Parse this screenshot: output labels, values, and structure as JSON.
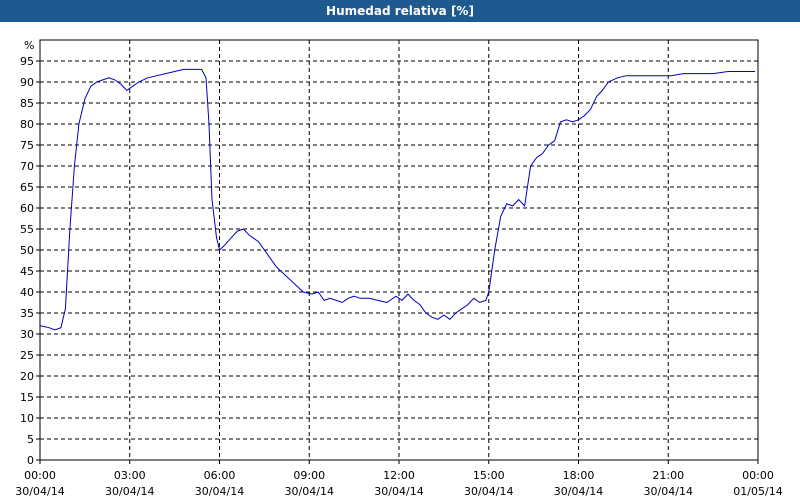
{
  "chart_data": {
    "type": "line",
    "title": "Humedad relativa [%]",
    "ylabel": "%",
    "ylim": [
      0,
      100
    ],
    "yticks": [
      0,
      5,
      10,
      15,
      20,
      25,
      30,
      35,
      40,
      45,
      50,
      55,
      60,
      65,
      70,
      75,
      80,
      85,
      90,
      95
    ],
    "xlim": [
      0,
      24
    ],
    "xticks": [
      {
        "hour": 0,
        "time": "00:00",
        "date": "30/04/14"
      },
      {
        "hour": 3,
        "time": "03:00",
        "date": "30/04/14"
      },
      {
        "hour": 6,
        "time": "06:00",
        "date": "30/04/14"
      },
      {
        "hour": 9,
        "time": "09:00",
        "date": "30/04/14"
      },
      {
        "hour": 12,
        "time": "12:00",
        "date": "30/04/14"
      },
      {
        "hour": 15,
        "time": "15:00",
        "date": "30/04/14"
      },
      {
        "hour": 18,
        "time": "18:00",
        "date": "30/04/14"
      },
      {
        "hour": 21,
        "time": "21:00",
        "date": "30/04/14"
      },
      {
        "hour": 24,
        "time": "00:00",
        "date": "01/05/14"
      }
    ],
    "grid": true,
    "line_color": "#0000c0",
    "series": [
      {
        "x": [
          0.0,
          0.3,
          0.5,
          0.7,
          0.85,
          1.0,
          1.15,
          1.3,
          1.5,
          1.7,
          1.9,
          2.1,
          2.3,
          2.5,
          2.7,
          2.9,
          3.0,
          3.3,
          3.6,
          3.9,
          4.2,
          4.5,
          4.8,
          5.1,
          5.4,
          5.55,
          5.65,
          5.75,
          5.9,
          6.0,
          6.15,
          6.4,
          6.6,
          6.8,
          7.0,
          7.3,
          7.6,
          7.9,
          8.2,
          8.5,
          8.8,
          9.1,
          9.3,
          9.5,
          9.7,
          9.9,
          10.1,
          10.3,
          10.5,
          10.7,
          11.0,
          11.3,
          11.6,
          11.9,
          12.1,
          12.3,
          12.5,
          12.7,
          12.9,
          13.1,
          13.3,
          13.5,
          13.7,
          13.9,
          14.1,
          14.3,
          14.5,
          14.7,
          14.9,
          15.0,
          15.2,
          15.4,
          15.6,
          15.8,
          16.0,
          16.2,
          16.4,
          16.6,
          16.8,
          17.0,
          17.2,
          17.4,
          17.6,
          17.8,
          18.0,
          18.2,
          18.4,
          18.6,
          18.8,
          19.0,
          19.3,
          19.6,
          19.9,
          20.2,
          20.5,
          20.8,
          21.1,
          21.5,
          22.0,
          22.5,
          23.0,
          23.5,
          23.9
        ],
        "y": [
          32,
          31.5,
          31,
          31.5,
          36,
          55,
          70,
          80,
          86,
          89,
          90,
          90.5,
          91,
          90.5,
          89.5,
          88,
          88.5,
          90,
          91,
          91.5,
          92,
          92.5,
          93,
          93,
          93,
          91,
          80,
          62,
          53,
          50,
          51,
          53,
          54.5,
          55,
          53.5,
          52,
          49,
          46,
          44,
          42,
          40,
          39.5,
          40,
          38,
          38.5,
          38,
          37.5,
          38.5,
          39,
          38.5,
          38.5,
          38,
          37.5,
          39,
          38,
          39.5,
          38,
          37,
          35,
          34,
          33.5,
          34.5,
          33.5,
          35,
          36,
          37,
          38.5,
          37.5,
          38,
          40,
          50,
          58,
          61,
          60.5,
          62,
          60.5,
          70,
          72,
          73,
          75,
          76,
          80.5,
          81,
          80.5,
          81,
          82,
          83.5,
          86.5,
          88,
          90,
          91,
          91.5,
          91.5,
          91.5,
          91.5,
          91.5,
          91.5,
          92,
          92,
          92,
          92.5,
          92.5,
          92.5
        ]
      }
    ]
  }
}
